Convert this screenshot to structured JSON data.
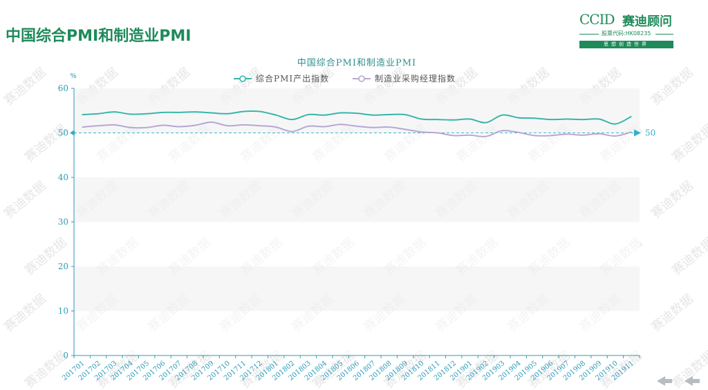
{
  "page": {
    "title": "中国综合PMI和制造业PMI"
  },
  "brand": {
    "logo_text": "CCID",
    "name": "赛迪顾问",
    "stock_code": "股票代码:HK08235",
    "slogan": "思想创造世界"
  },
  "watermark": "赛迪数据",
  "chart_data": {
    "type": "line",
    "title": "中国综合PMI和制造业PMI",
    "ylabel": "%",
    "ylim": [
      0,
      60
    ],
    "yticks": [
      0,
      10,
      20,
      30,
      40,
      50,
      60
    ],
    "grid": "horizontal bands",
    "legend": "top",
    "reference_line": {
      "value": 50,
      "label": "50"
    },
    "categories": [
      "201701",
      "201702",
      "201703",
      "201704",
      "201705",
      "201706",
      "201707",
      "201708",
      "201709",
      "201710",
      "201711",
      "201712",
      "201801",
      "201802",
      "201803",
      "201804",
      "201805",
      "201806",
      "201807",
      "201808",
      "201809",
      "201810",
      "201811",
      "201812",
      "201901",
      "201902",
      "201903",
      "201904",
      "201905",
      "201906",
      "201907",
      "201908",
      "201909",
      "201910",
      "201911"
    ],
    "series": [
      {
        "name": "综合PMI产出指数",
        "color": "#35b6a8",
        "values": [
          54.1,
          54.3,
          54.7,
          54.2,
          54.3,
          54.6,
          54.6,
          54.7,
          54.5,
          54.3,
          54.8,
          54.8,
          54.0,
          53.0,
          54.1,
          54.0,
          54.5,
          54.4,
          54.0,
          54.1,
          54.1,
          53.1,
          53.0,
          52.9,
          53.1,
          52.3,
          54.0,
          53.4,
          53.3,
          53.0,
          53.1,
          53.0,
          53.1,
          52.0,
          53.7
        ]
      },
      {
        "name": "制造业采购经理指数",
        "color": "#b7a6d3",
        "values": [
          51.3,
          51.6,
          51.8,
          51.2,
          51.2,
          51.7,
          51.4,
          51.7,
          52.4,
          51.6,
          51.8,
          51.6,
          51.3,
          50.3,
          51.5,
          51.4,
          51.9,
          51.5,
          51.2,
          51.3,
          50.8,
          50.2,
          50.0,
          49.4,
          49.5,
          49.2,
          50.5,
          50.1,
          49.4,
          49.4,
          49.7,
          49.5,
          49.8,
          49.3,
          50.2
        ]
      }
    ]
  }
}
